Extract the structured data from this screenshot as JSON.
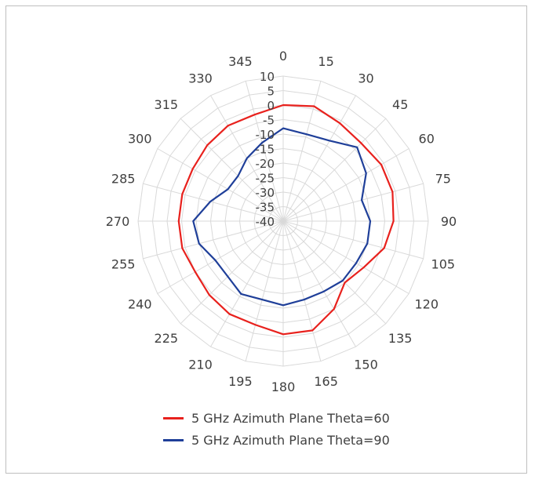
{
  "chart_data": {
    "type": "radar",
    "categories": [
      "0",
      "15",
      "30",
      "45",
      "60",
      "75",
      "90",
      "105",
      "120",
      "135",
      "150",
      "165",
      "180",
      "195",
      "210",
      "225",
      "240",
      "255",
      "270",
      "285",
      "300",
      "315",
      "330",
      "345"
    ],
    "r_ticks": [
      "-40",
      "-35",
      "-30",
      "-25",
      "-20",
      "-15",
      "-10",
      "-5",
      "0",
      "5",
      "10"
    ],
    "r_range": [
      -40,
      10
    ],
    "grid": true,
    "legend_position": "bottom",
    "series": [
      {
        "name": "5 GHz Azimuth Plane Theta=60",
        "color": "#e8211d",
        "values": [
          0,
          1,
          -1,
          -2,
          -1,
          -1,
          -2,
          -4,
          -8,
          -10,
          -5,
          -1,
          -1,
          -3,
          -3,
          -4,
          -5,
          -4,
          -4,
          -4,
          -4,
          -3,
          -2,
          -2
        ]
      },
      {
        "name": "5 GHz Azimuth Plane Theta=90",
        "color": "#1f3f99",
        "values": [
          -8,
          -9,
          -8,
          -4,
          -7,
          -12,
          -10,
          -10,
          -11,
          -11,
          -12,
          -12,
          -11,
          -12,
          -11,
          -13,
          -13,
          -10,
          -9,
          -14,
          -18,
          -18,
          -15,
          -12
        ]
      }
    ]
  }
}
